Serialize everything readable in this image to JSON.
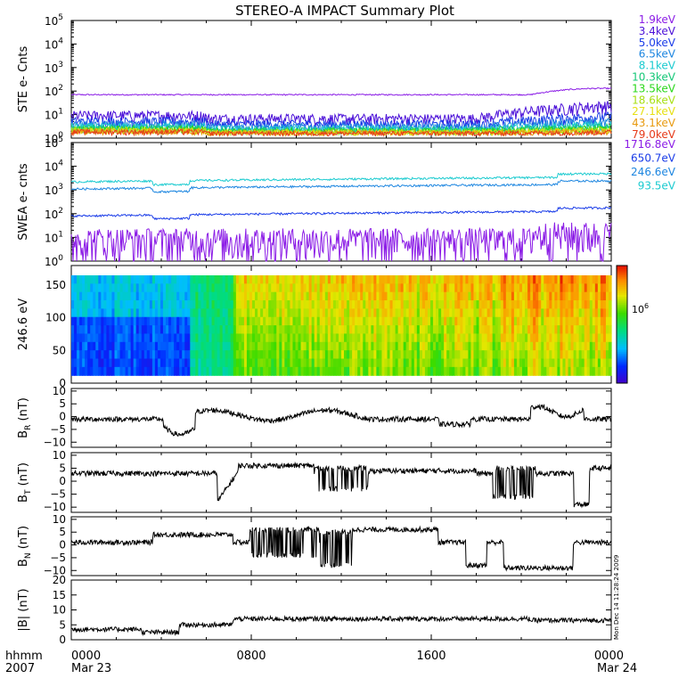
{
  "title": "STEREO-A IMPACT Summary Plot",
  "footer": {
    "time_label": "hhmm",
    "year_label": "2007",
    "start_date": "Mar 23",
    "end_date": "Mar 24",
    "timestamp": "Mon Dec 14 11:28:24 2009"
  },
  "chart_data": [
    {
      "id": "ste",
      "type": "line",
      "ylabel": "STE e- Cnts",
      "yscale": "log",
      "ylim": [
        1,
        100000
      ],
      "yticks": [
        {
          "b": "10",
          "e": "0"
        },
        {
          "b": "10",
          "e": "1"
        },
        {
          "b": "10",
          "e": "2"
        },
        {
          "b": "10",
          "e": "3"
        },
        {
          "b": "10",
          "e": "4"
        },
        {
          "b": "10",
          "e": "5"
        }
      ],
      "series": [
        {
          "name": "1.9keV",
          "color": "#8b1ce6"
        },
        {
          "name": "3.4keV",
          "color": "#4b10d8"
        },
        {
          "name": "5.0keV",
          "color": "#1a3ce8"
        },
        {
          "name": "6.5keV",
          "color": "#1d86e0"
        },
        {
          "name": "8.1keV",
          "color": "#1ccbd0"
        },
        {
          "name": "10.3keV",
          "color": "#16c878"
        },
        {
          "name": "13.5keV",
          "color": "#2ad81a"
        },
        {
          "name": "18.6keV",
          "color": "#a8e014"
        },
        {
          "name": "27.1keV",
          "color": "#e6e014"
        },
        {
          "name": "43.1keV",
          "color": "#e89a10"
        },
        {
          "name": "79.0keV",
          "color": "#e63a1a"
        }
      ]
    },
    {
      "id": "swea",
      "type": "line",
      "ylabel": "SWEA e- cnts",
      "yscale": "log",
      "ylim": [
        1,
        100000
      ],
      "yticks": [
        {
          "b": "10",
          "e": "0"
        },
        {
          "b": "10",
          "e": "1"
        },
        {
          "b": "10",
          "e": "2"
        },
        {
          "b": "10",
          "e": "3"
        },
        {
          "b": "10",
          "e": "4"
        },
        {
          "b": "10",
          "e": "5"
        }
      ],
      "series": [
        {
          "name": "1716.8eV",
          "color": "#8b1ce6"
        },
        {
          "name": "650.7eV",
          "color": "#1a3ce8"
        },
        {
          "name": "246.6eV",
          "color": "#1d86e0"
        },
        {
          "name": "93.5eV",
          "color": "#1ccbd0"
        }
      ]
    },
    {
      "id": "pad",
      "type": "heatmap",
      "ylabel": "246.6 eV",
      "ylim": [
        0,
        180
      ],
      "yticks": [
        "0",
        "50",
        "100",
        "150"
      ],
      "colorbar_label": {
        "b": "10",
        "e": "6"
      }
    },
    {
      "id": "br",
      "type": "line",
      "ylabel": "B",
      "ylabel_sub": "R",
      "ylabel_unit": "(nT)",
      "ylim": [
        -12,
        11
      ],
      "yticks": [
        "−10",
        "−5",
        "0",
        "5",
        "10"
      ],
      "color": "#000000"
    },
    {
      "id": "bt",
      "type": "line",
      "ylabel": "B",
      "ylabel_sub": "T",
      "ylabel_unit": "(nT)",
      "ylim": [
        -12,
        11
      ],
      "yticks": [
        "−10",
        "−5",
        "0",
        "5",
        "10"
      ],
      "color": "#000000"
    },
    {
      "id": "bn",
      "type": "line",
      "ylabel": "B",
      "ylabel_sub": "N",
      "ylabel_unit": "(nT)",
      "ylim": [
        -12,
        11
      ],
      "yticks": [
        "−10",
        "−5",
        "0",
        "5",
        "10"
      ],
      "color": "#000000"
    },
    {
      "id": "bmag",
      "type": "line",
      "ylabel": "|B| (nT)",
      "ylim": [
        0,
        20
      ],
      "yticks": [
        "0",
        "5",
        "10",
        "15",
        "20"
      ],
      "color": "#000000"
    }
  ],
  "x_axis": {
    "ticks": [
      "0000",
      "0800",
      "1600",
      "0000"
    ],
    "tick_hours": [
      0,
      8,
      16,
      24
    ]
  }
}
